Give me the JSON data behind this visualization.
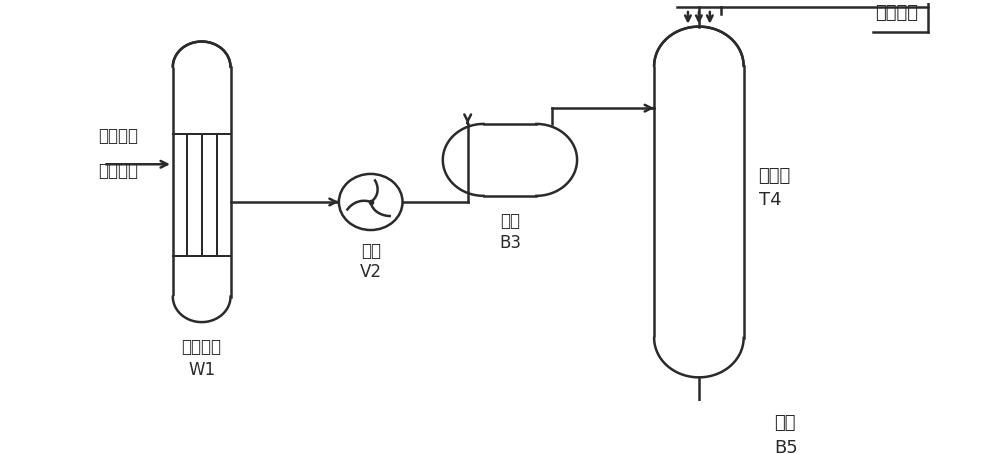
{
  "bg_color": "#ffffff",
  "line_color": "#2a2a2a",
  "text_color": "#2a2a2a",
  "labels": {
    "inert_gas": "惰性气体",
    "nitrogen": "氮气气源",
    "heat_exchanger": "热交换器",
    "W1": "W1",
    "fan": "风机",
    "V2": "V2",
    "storage": "储罐",
    "B3": "B3",
    "fluidized_bed": "流化床",
    "T4": "T4",
    "vessel": "容器",
    "B5": "B5",
    "fluid_medium": "流体介质"
  },
  "font_size": 12,
  "lw": 1.8
}
